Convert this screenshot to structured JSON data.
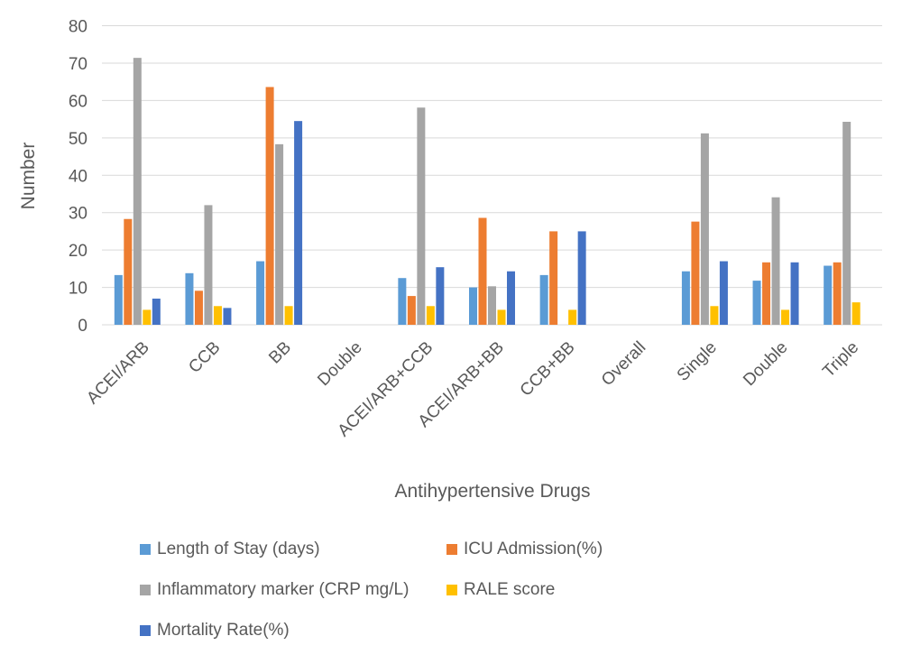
{
  "chart_data": {
    "type": "bar",
    "xlabel": "Antihypertensive Drugs",
    "ylabel": "Number",
    "ylim": [
      0,
      80
    ],
    "yticks": [
      0,
      10,
      20,
      30,
      40,
      50,
      60,
      70,
      80
    ],
    "grid": true,
    "legend_position": "bottom",
    "categories": [
      "ACEI/ARB",
      "CCB",
      "BB",
      "Double",
      "ACEI/ARB+CCB",
      "ACEI/ARB+BB",
      "CCB+BB",
      "Overall",
      "Single",
      "Double",
      "Triple"
    ],
    "series": [
      {
        "name": "Length of Stay (days)",
        "color": "#5b9bd5",
        "values": [
          13.3,
          13.8,
          17.0,
          null,
          12.5,
          10.0,
          13.3,
          null,
          14.3,
          11.8,
          15.8
        ]
      },
      {
        "name": "ICU Admission(%)",
        "color": "#ed7d31",
        "values": [
          28.3,
          9.1,
          63.6,
          null,
          7.7,
          28.6,
          25.0,
          null,
          27.6,
          16.7,
          16.7
        ]
      },
      {
        "name": "Inflammatory marker (CRP mg/L)",
        "color": "#a5a5a5",
        "values": [
          71.4,
          32.0,
          48.3,
          null,
          58.1,
          10.3,
          null,
          null,
          51.2,
          34.1,
          54.3
        ]
      },
      {
        "name": "RALE score",
        "color": "#ffc000",
        "values": [
          4.0,
          5.0,
          5.0,
          null,
          5.0,
          4.0,
          4.0,
          null,
          5.0,
          4.0,
          6.0
        ]
      },
      {
        "name": "Mortality Rate(%)",
        "color": "#4472c4",
        "values": [
          7.0,
          4.5,
          54.5,
          null,
          15.4,
          14.3,
          25.0,
          null,
          17.0,
          16.7,
          null
        ]
      }
    ]
  }
}
